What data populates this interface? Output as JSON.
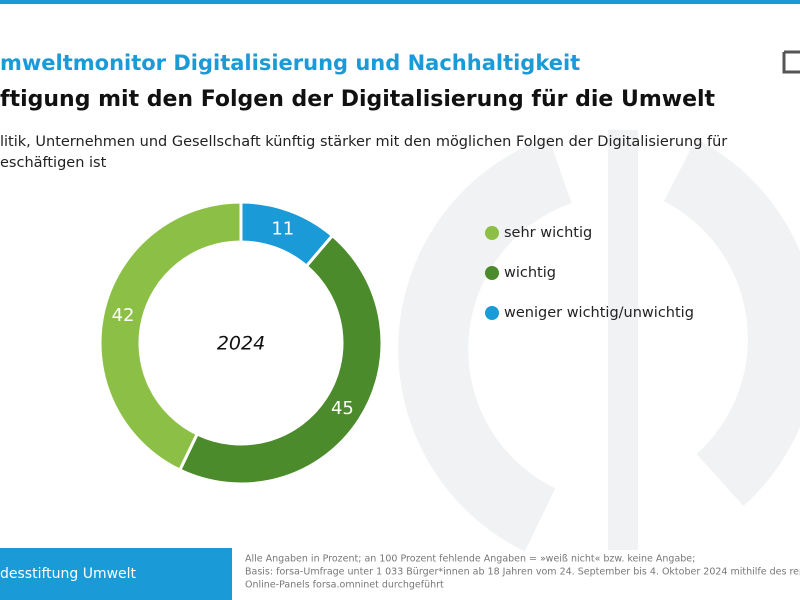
{
  "chart_data": {
    "type": "donut",
    "title": "mweltmonitor Digitalisierung und Nachhaltigkeit",
    "subtitle": "ftigung mit den Folgen der Digitalisierung für die Umwelt",
    "description": [
      "litik, Unternehmen und Gesellschaft künftig stärker mit den möglichen Folgen der Digitalisierung für",
      "eschäftigen ist"
    ],
    "center_label": "2024",
    "categories": [
      "weniger wichtig/unwichtig",
      "wichtig",
      "sehr wichtig"
    ],
    "values": [
      11,
      45,
      42
    ],
    "colors": [
      "#1a9ad6",
      "#4b8b2b",
      "#8cbf45"
    ],
    "legend_order": [
      2,
      1,
      0
    ]
  },
  "footer": {
    "organization": "desstiftung Umwelt",
    "notes": [
      "Alle Angaben in Prozent; an 100 Prozent fehlende Angaben = »weiß nicht« bzw. keine Angabe;",
      "Basis: forsa-Umfrage unter 1 033 Bürger*innen ab 18 Jahren vom 24. September bis 4. Oktober 2024 mithilfe des repräsentativen",
      "Online-Panels forsa.omninet durchgeführt"
    ]
  }
}
